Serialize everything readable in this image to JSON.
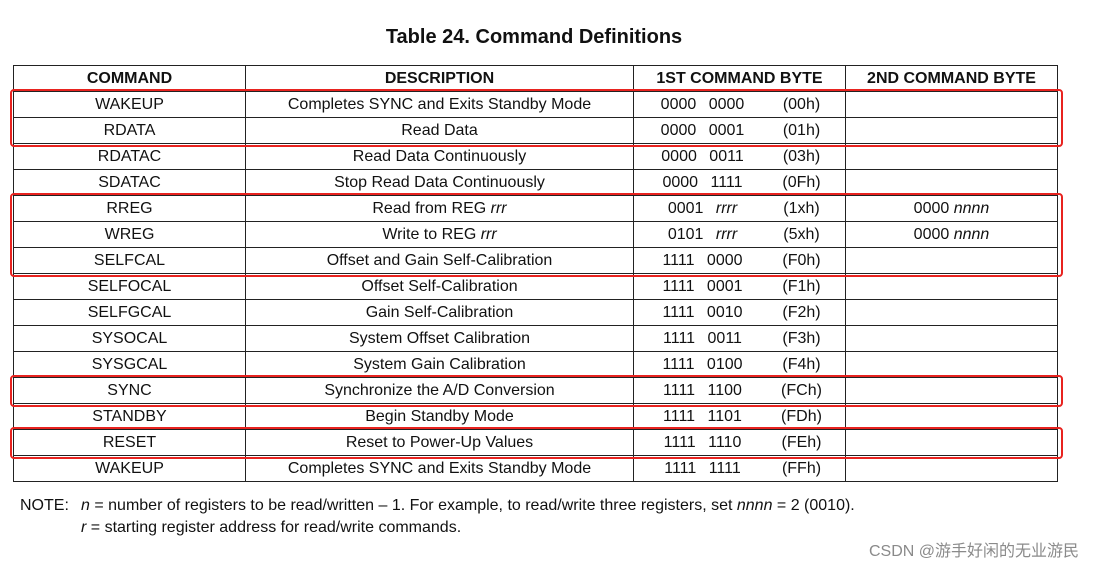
{
  "title": "Table 24. Command Definitions",
  "table": {
    "headers": [
      "COMMAND",
      "DESCRIPTION",
      "1ST COMMAND BYTE",
      "2ND COMMAND BYTE"
    ],
    "rows": [
      {
        "command": "WAKEUP",
        "description": [
          "Completes SYNC and Exits Standby Mode"
        ],
        "bits": [
          "0000 0000"
        ],
        "hex": "(00h)",
        "second": null
      },
      {
        "command": "RDATA",
        "description": [
          "Read Data"
        ],
        "bits": [
          "0000 0001"
        ],
        "hex": "(01h)",
        "second": null
      },
      {
        "command": "RDATAC",
        "description": [
          "Read Data Continuously"
        ],
        "bits": [
          "0000 0011"
        ],
        "hex": "(03h)",
        "second": null
      },
      {
        "command": "SDATAC",
        "description": [
          "Stop Read Data Continuously"
        ],
        "bits": [
          "0000 1111"
        ],
        "hex": "(0Fh)",
        "second": null
      },
      {
        "command": "RREG",
        "description": [
          "Read from REG ",
          {
            "italic": "rrr"
          }
        ],
        "bits": [
          "0001 ",
          {
            "italic": "rrrr"
          }
        ],
        "hex": "(1xh)",
        "second": [
          "0000 ",
          {
            "italic": "nnnn"
          }
        ]
      },
      {
        "command": "WREG",
        "description": [
          "Write to REG ",
          {
            "italic": "rrr"
          }
        ],
        "bits": [
          "0101 ",
          {
            "italic": "rrrr"
          }
        ],
        "hex": "(5xh)",
        "second": [
          "0000 ",
          {
            "italic": "nnnn"
          }
        ]
      },
      {
        "command": "SELFCAL",
        "description": [
          "Offset and Gain Self-Calibration"
        ],
        "bits": [
          "1111 0000"
        ],
        "hex": "(F0h)",
        "second": null
      },
      {
        "command": "SELFOCAL",
        "description": [
          "Offset Self-Calibration"
        ],
        "bits": [
          "1111 0001"
        ],
        "hex": "(F1h)",
        "second": null
      },
      {
        "command": "SELFGCAL",
        "description": [
          "Gain Self-Calibration"
        ],
        "bits": [
          "1111 0010"
        ],
        "hex": "(F2h)",
        "second": null
      },
      {
        "command": "SYSOCAL",
        "description": [
          "System Offset Calibration"
        ],
        "bits": [
          "1111 0011"
        ],
        "hex": "(F3h)",
        "second": null
      },
      {
        "command": "SYSGCAL",
        "description": [
          "System Gain Calibration"
        ],
        "bits": [
          "1111 0100"
        ],
        "hex": "(F4h)",
        "second": null
      },
      {
        "command": "SYNC",
        "description": [
          "Synchronize the A/D Conversion"
        ],
        "bits": [
          "1111 1100"
        ],
        "hex": "(FCh)",
        "second": null
      },
      {
        "command": "STANDBY",
        "description": [
          "Begin Standby Mode"
        ],
        "bits": [
          "1111 1101"
        ],
        "hex": "(FDh)",
        "second": null
      },
      {
        "command": "RESET",
        "description": [
          "Reset to Power-Up Values"
        ],
        "bits": [
          "1111 1110"
        ],
        "hex": "(FEh)",
        "second": null
      },
      {
        "command": "WAKEUP",
        "description": [
          "Completes SYNC and Exits Standby Mode"
        ],
        "bits": [
          "1111 1111"
        ],
        "hex": "(FFh)",
        "second": null
      }
    ],
    "highlights": [
      [
        0,
        1
      ],
      [
        4,
        6
      ],
      [
        11,
        11
      ],
      [
        13,
        13
      ]
    ],
    "highlight_color": "#e8231f"
  },
  "note": {
    "label": "NOTE:",
    "lines": [
      [
        {
          "italic": "n"
        },
        " = number of registers to be read/written – 1. For example, to read/write three registers, set ",
        {
          "italic": "nnnn"
        },
        " = 2 (0010)."
      ],
      [
        {
          "italic": "r"
        },
        " = starting register address for read/write commands."
      ]
    ]
  },
  "watermark": "CSDN @游手好闲的无业游民"
}
